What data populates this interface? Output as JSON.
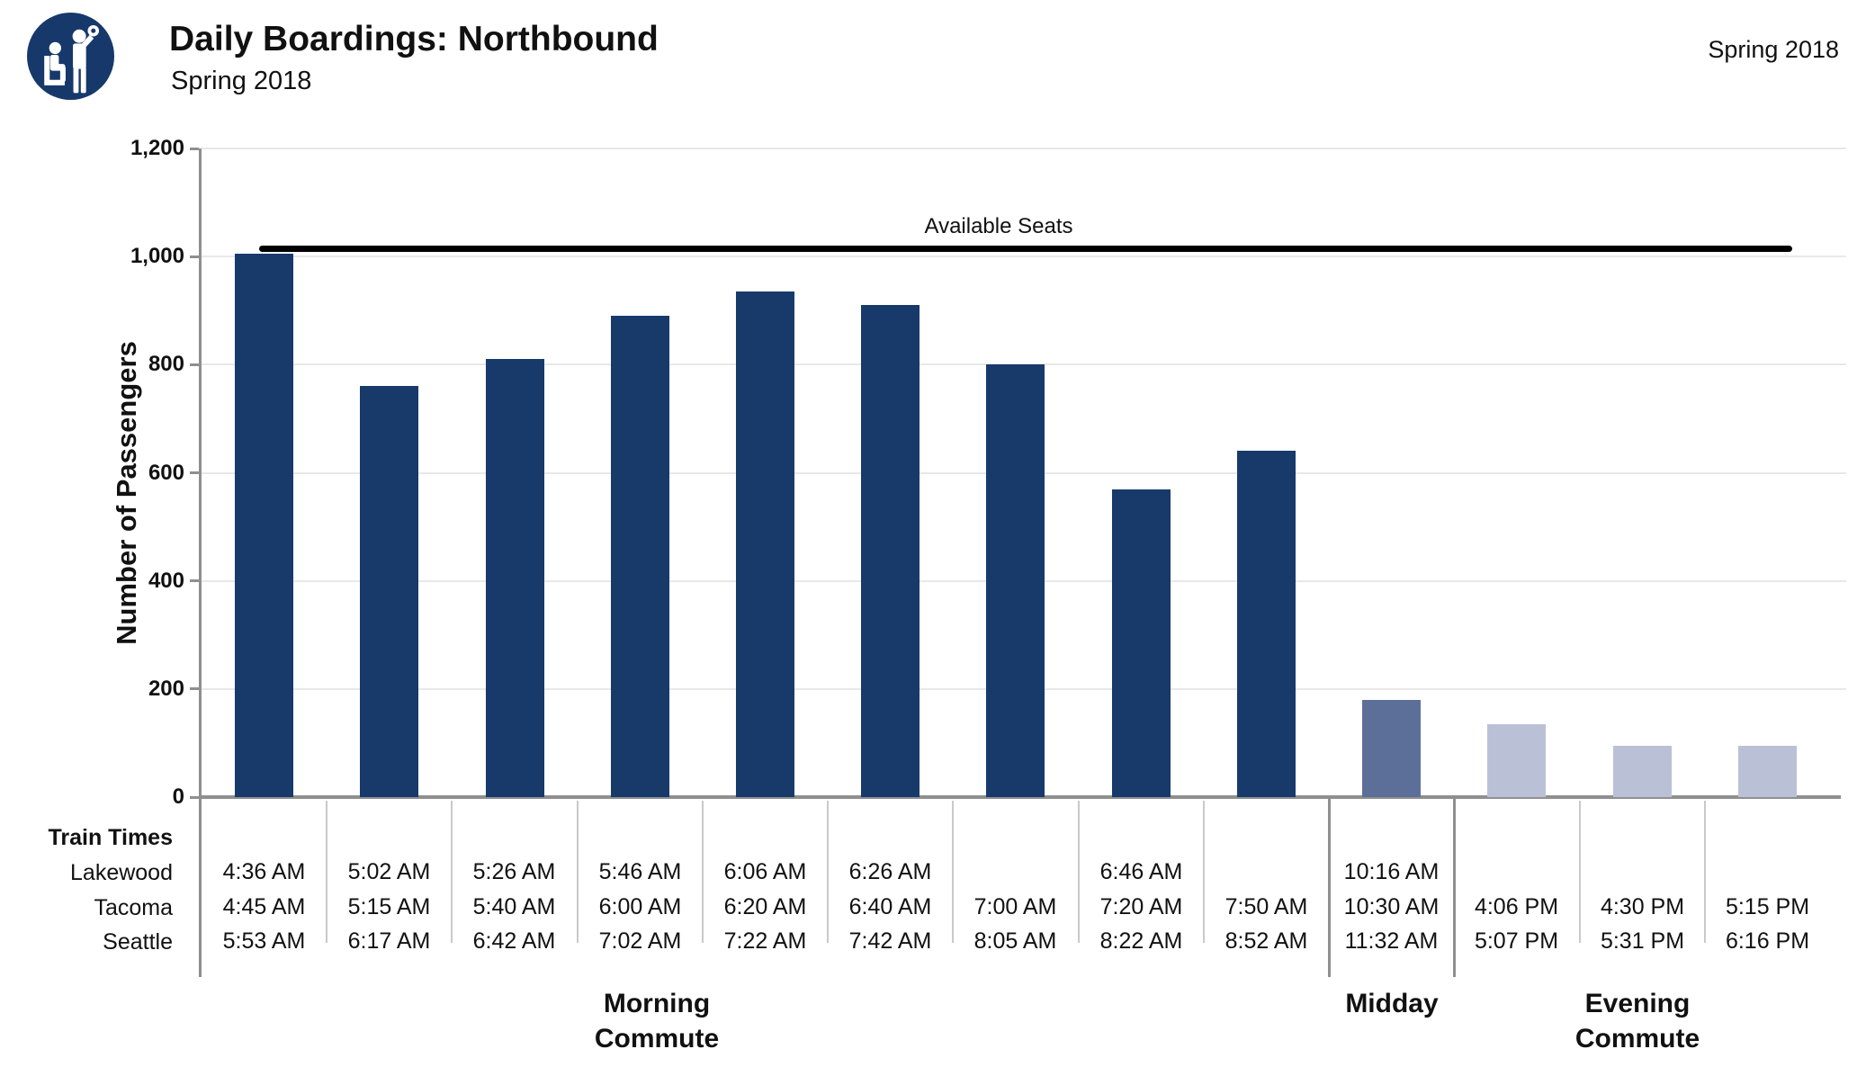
{
  "header": {
    "title": "Daily Boardings: Northbound",
    "subtitle": "Spring 2018",
    "corner_label": "Spring 2018",
    "logo": "transit-passengers-icon",
    "logo_color": "#17386a"
  },
  "chart_data": {
    "type": "bar",
    "title": "Daily Boardings: Northbound",
    "subtitle": "Spring 2018",
    "xlabel": "",
    "ylabel": "Number of Passengers",
    "ylim": [
      0,
      1200
    ],
    "grid": true,
    "legend_position": "none",
    "yticks": [
      {
        "label": "0",
        "value": 0
      },
      {
        "label": "200",
        "value": 200
      },
      {
        "label": "400",
        "value": 400
      },
      {
        "label": "600",
        "value": 600
      },
      {
        "label": "800",
        "value": 800
      },
      {
        "label": "1,000",
        "value": 1000
      },
      {
        "label": "1,200",
        "value": 1200
      }
    ],
    "available_seats": {
      "label": "Available Seats",
      "value": 1010
    },
    "groups": [
      {
        "id": "morning",
        "label_lines": [
          "Morning",
          "Commute"
        ],
        "color": "#173a6b"
      },
      {
        "id": "midday",
        "label_lines": [
          "Midday"
        ],
        "color": "#5b6f99"
      },
      {
        "id": "evening",
        "label_lines": [
          "Evening",
          "Commute"
        ],
        "color": "#bac1d6"
      }
    ],
    "columns": [
      {
        "group": "morning",
        "value": 1005,
        "times": [
          "4:36 AM",
          "4:45 AM",
          "5:53 AM"
        ]
      },
      {
        "group": "morning",
        "value": 760,
        "times": [
          "5:02 AM",
          "5:15 AM",
          "6:17 AM"
        ]
      },
      {
        "group": "morning",
        "value": 810,
        "times": [
          "5:26 AM",
          "5:40 AM",
          "6:42 AM"
        ]
      },
      {
        "group": "morning",
        "value": 890,
        "times": [
          "5:46 AM",
          "6:00 AM",
          "7:02 AM"
        ]
      },
      {
        "group": "morning",
        "value": 935,
        "times": [
          "6:06 AM",
          "6:20 AM",
          "7:22 AM"
        ]
      },
      {
        "group": "morning",
        "value": 910,
        "times": [
          "6:26 AM",
          "6:40 AM",
          "7:42 AM"
        ]
      },
      {
        "group": "morning",
        "value": 800,
        "times": [
          null,
          "7:00 AM",
          "8:05 AM"
        ]
      },
      {
        "group": "morning",
        "value": 570,
        "times": [
          "6:46 AM",
          "7:20 AM",
          "8:22 AM"
        ]
      },
      {
        "group": "morning",
        "value": 640,
        "times": [
          null,
          "7:50 AM",
          "8:52 AM"
        ]
      },
      {
        "group": "midday",
        "value": 180,
        "times": [
          "10:16 AM",
          "10:30 AM",
          "11:32 AM"
        ]
      },
      {
        "group": "evening",
        "value": 135,
        "times": [
          null,
          "4:06 PM",
          "5:07 PM"
        ]
      },
      {
        "group": "evening",
        "value": 95,
        "times": [
          null,
          "4:30 PM",
          "5:31 PM"
        ]
      },
      {
        "group": "evening",
        "value": 95,
        "times": [
          null,
          "5:15 PM",
          "6:16 PM"
        ]
      }
    ]
  },
  "table": {
    "header": "Train Times",
    "row_labels": [
      "Lakewood",
      "Tacoma",
      "Seattle"
    ]
  },
  "style": {
    "grid_color": "#e8e8e8",
    "axis_color": "#8f8f8f",
    "light_divider_color": "#c9c9c9",
    "line_color": "#000000"
  }
}
